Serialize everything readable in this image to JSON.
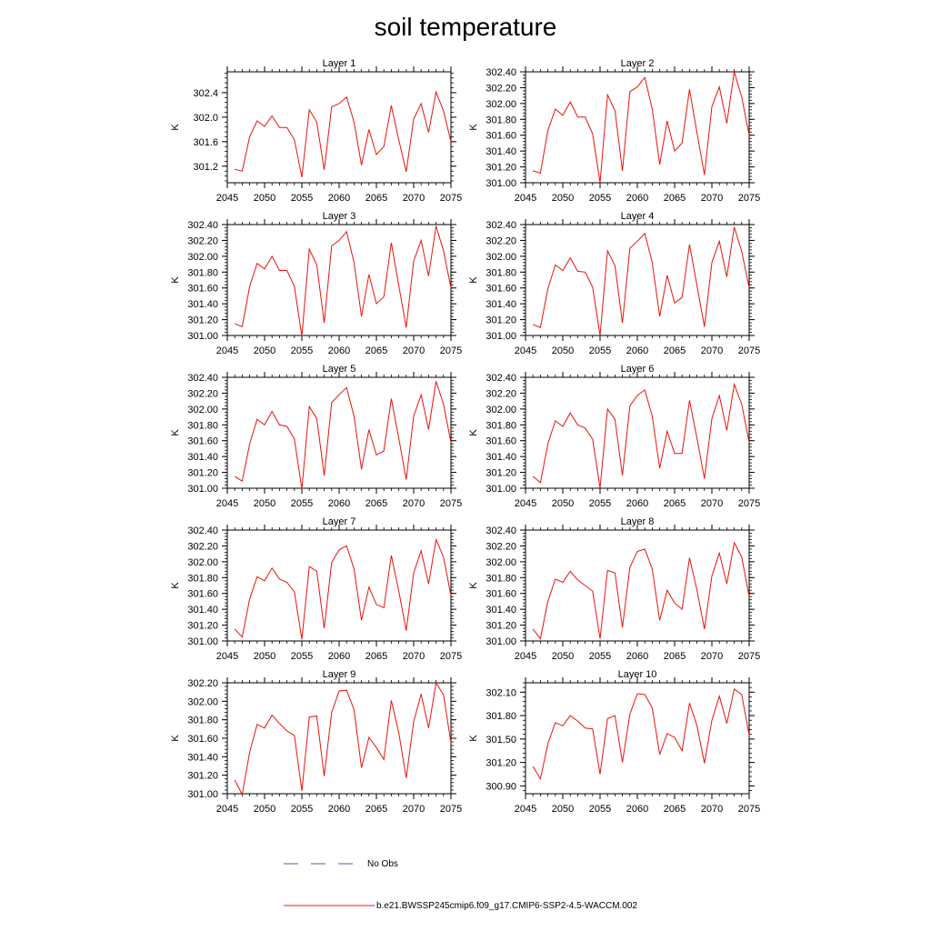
{
  "title": "soil temperature",
  "legend": [
    {
      "label": "No Obs",
      "color": "#5a5aa0",
      "style": "dashed"
    },
    {
      "label": "b.e21.BWSSP245cmip6.f09_g17.CMIP6-SSP2-4.5-WACCM.002",
      "color": "#e8140c",
      "style": "solid"
    }
  ],
  "line_color": "#e8140c",
  "chart_data": [
    {
      "type": "line",
      "title": "Layer 1",
      "ylabel": "K",
      "x": [
        2046,
        2047,
        2048,
        2049,
        2050,
        2051,
        2052,
        2053,
        2054,
        2055,
        2056,
        2057,
        2058,
        2059,
        2060,
        2061,
        2062,
        2063,
        2064,
        2065,
        2066,
        2067,
        2068,
        2069,
        2070,
        2071,
        2072,
        2073,
        2074,
        2075
      ],
      "y": [
        301.15,
        301.12,
        301.68,
        301.94,
        301.85,
        302.02,
        301.83,
        301.83,
        301.63,
        301.02,
        302.12,
        301.92,
        301.14,
        302.17,
        302.22,
        302.33,
        301.92,
        301.22,
        301.8,
        301.39,
        301.52,
        302.19,
        301.63,
        301.11,
        301.97,
        302.22,
        301.75,
        302.41,
        302.1,
        301.6
      ],
      "xlim": [
        2045,
        2075
      ],
      "ylim": [
        300.93,
        302.74
      ],
      "xticks": [
        "2045",
        "2050",
        "2055",
        "2060",
        "2065",
        "2070",
        "2075"
      ],
      "yticks": [
        "301.2",
        "301.6",
        "302.0",
        "302.4"
      ]
    },
    {
      "type": "line",
      "title": "Layer 2",
      "ylabel": "K",
      "x": [
        2046,
        2047,
        2048,
        2049,
        2050,
        2051,
        2052,
        2053,
        2054,
        2055,
        2056,
        2057,
        2058,
        2059,
        2060,
        2061,
        2062,
        2063,
        2064,
        2065,
        2066,
        2067,
        2068,
        2069,
        2070,
        2071,
        2072,
        2073,
        2074,
        2075
      ],
      "y": [
        301.15,
        301.12,
        301.66,
        301.93,
        301.85,
        302.02,
        301.83,
        301.83,
        301.62,
        301.0,
        302.11,
        301.91,
        301.15,
        302.15,
        302.21,
        302.33,
        301.93,
        301.23,
        301.78,
        301.4,
        301.5,
        302.18,
        301.63,
        301.1,
        301.96,
        302.21,
        301.75,
        302.4,
        302.08,
        301.6
      ],
      "xlim": [
        2045,
        2075
      ],
      "ylim": [
        301.0,
        302.4
      ],
      "xticks": [
        "2045",
        "2050",
        "2055",
        "2060",
        "2065",
        "2070",
        "2075"
      ],
      "yticks": [
        "301.00",
        "301.20",
        "301.40",
        "301.60",
        "301.80",
        "302.00",
        "302.20",
        "302.40"
      ]
    },
    {
      "type": "line",
      "title": "Layer 3",
      "ylabel": "K",
      "x": [
        2046,
        2047,
        2048,
        2049,
        2050,
        2051,
        2052,
        2053,
        2054,
        2055,
        2056,
        2057,
        2058,
        2059,
        2060,
        2061,
        2062,
        2063,
        2064,
        2065,
        2066,
        2067,
        2068,
        2069,
        2070,
        2071,
        2072,
        2073,
        2074,
        2075
      ],
      "y": [
        301.15,
        301.11,
        301.62,
        301.91,
        301.84,
        302.0,
        301.82,
        301.82,
        301.62,
        300.99,
        302.09,
        301.89,
        301.16,
        302.13,
        302.2,
        302.31,
        301.92,
        301.24,
        301.77,
        301.4,
        301.49,
        302.17,
        301.63,
        301.1,
        301.94,
        302.2,
        301.75,
        302.38,
        302.07,
        301.6
      ],
      "xlim": [
        2045,
        2075
      ],
      "ylim": [
        301.0,
        302.4
      ],
      "xticks": [
        "2045",
        "2050",
        "2055",
        "2060",
        "2065",
        "2070",
        "2075"
      ],
      "yticks": [
        "301.00",
        "301.20",
        "301.40",
        "301.60",
        "301.80",
        "302.00",
        "302.20",
        "302.40"
      ]
    },
    {
      "type": "line",
      "title": "Layer 4",
      "ylabel": "K",
      "x": [
        2046,
        2047,
        2048,
        2049,
        2050,
        2051,
        2052,
        2053,
        2054,
        2055,
        2056,
        2057,
        2058,
        2059,
        2060,
        2061,
        2062,
        2063,
        2064,
        2065,
        2066,
        2067,
        2068,
        2069,
        2070,
        2071,
        2072,
        2073,
        2074,
        2075
      ],
      "y": [
        301.14,
        301.1,
        301.59,
        301.89,
        301.82,
        301.98,
        301.81,
        301.8,
        301.61,
        301.0,
        302.07,
        301.88,
        301.16,
        302.1,
        302.19,
        302.29,
        301.92,
        301.24,
        301.76,
        301.41,
        301.48,
        302.15,
        301.63,
        301.11,
        301.92,
        302.19,
        301.74,
        302.37,
        302.06,
        301.6
      ],
      "xlim": [
        2045,
        2075
      ],
      "ylim": [
        301.0,
        302.4
      ],
      "xticks": [
        "2045",
        "2050",
        "2055",
        "2060",
        "2065",
        "2070",
        "2075"
      ],
      "yticks": [
        "301.00",
        "301.20",
        "301.40",
        "301.60",
        "301.80",
        "302.00",
        "302.20",
        "302.40"
      ]
    },
    {
      "type": "line",
      "title": "Layer 5",
      "ylabel": "K",
      "x": [
        2046,
        2047,
        2048,
        2049,
        2050,
        2051,
        2052,
        2053,
        2054,
        2055,
        2056,
        2057,
        2058,
        2059,
        2060,
        2061,
        2062,
        2063,
        2064,
        2065,
        2066,
        2067,
        2068,
        2069,
        2070,
        2071,
        2072,
        2073,
        2074,
        2075
      ],
      "y": [
        301.15,
        301.09,
        301.56,
        301.87,
        301.8,
        301.97,
        301.8,
        301.78,
        301.62,
        300.99,
        302.03,
        301.88,
        301.16,
        302.08,
        302.18,
        302.27,
        301.91,
        301.24,
        301.74,
        301.42,
        301.47,
        302.13,
        301.63,
        301.11,
        301.91,
        302.18,
        301.74,
        302.35,
        302.06,
        301.58
      ],
      "xlim": [
        2045,
        2075
      ],
      "ylim": [
        301.0,
        302.4
      ],
      "xticks": [
        "2045",
        "2050",
        "2055",
        "2060",
        "2065",
        "2070",
        "2075"
      ],
      "yticks": [
        "301.00",
        "301.20",
        "301.40",
        "301.60",
        "301.80",
        "302.00",
        "302.20",
        "302.40"
      ]
    },
    {
      "type": "line",
      "title": "Layer 6",
      "ylabel": "K",
      "x": [
        2046,
        2047,
        2048,
        2049,
        2050,
        2051,
        2052,
        2053,
        2054,
        2055,
        2056,
        2057,
        2058,
        2059,
        2060,
        2061,
        2062,
        2063,
        2064,
        2065,
        2066,
        2067,
        2068,
        2069,
        2070,
        2071,
        2072,
        2073,
        2074,
        2075
      ],
      "y": [
        301.15,
        301.07,
        301.56,
        301.85,
        301.78,
        301.95,
        301.8,
        301.76,
        301.62,
        301.0,
        302.0,
        301.87,
        301.16,
        302.04,
        302.17,
        302.24,
        301.91,
        301.25,
        301.72,
        301.44,
        301.44,
        302.11,
        301.63,
        301.12,
        301.88,
        302.17,
        301.73,
        302.31,
        302.06,
        301.58
      ],
      "xlim": [
        2045,
        2075
      ],
      "ylim": [
        301.0,
        302.4
      ],
      "xticks": [
        "2045",
        "2050",
        "2055",
        "2060",
        "2065",
        "2070",
        "2075"
      ],
      "yticks": [
        "301.00",
        "301.20",
        "301.40",
        "301.60",
        "301.80",
        "302.00",
        "302.20",
        "302.40"
      ]
    },
    {
      "type": "line",
      "title": "Layer 7",
      "ylabel": "K",
      "x": [
        2046,
        2047,
        2048,
        2049,
        2050,
        2051,
        2052,
        2053,
        2054,
        2055,
        2056,
        2057,
        2058,
        2059,
        2060,
        2061,
        2062,
        2063,
        2064,
        2065,
        2066,
        2067,
        2068,
        2069,
        2070,
        2071,
        2072,
        2073,
        2074,
        2075
      ],
      "y": [
        301.15,
        301.05,
        301.53,
        301.81,
        301.76,
        301.92,
        301.78,
        301.74,
        301.62,
        301.02,
        301.94,
        301.88,
        301.16,
        301.99,
        302.15,
        302.2,
        301.91,
        301.26,
        301.68,
        301.46,
        301.42,
        302.08,
        301.63,
        301.13,
        301.86,
        302.14,
        301.72,
        302.28,
        302.06,
        301.57
      ],
      "xlim": [
        2045,
        2075
      ],
      "ylim": [
        301.0,
        302.4
      ],
      "xticks": [
        "2045",
        "2050",
        "2055",
        "2060",
        "2065",
        "2070",
        "2075"
      ],
      "yticks": [
        "301.00",
        "301.20",
        "301.40",
        "301.60",
        "301.80",
        "302.00",
        "302.20",
        "302.40"
      ]
    },
    {
      "type": "line",
      "title": "Layer 8",
      "ylabel": "K",
      "x": [
        2046,
        2047,
        2048,
        2049,
        2050,
        2051,
        2052,
        2053,
        2054,
        2055,
        2056,
        2057,
        2058,
        2059,
        2060,
        2061,
        2062,
        2063,
        2064,
        2065,
        2066,
        2067,
        2068,
        2069,
        2070,
        2071,
        2072,
        2073,
        2074,
        2075
      ],
      "y": [
        301.15,
        301.03,
        301.5,
        301.78,
        301.74,
        301.88,
        301.77,
        301.7,
        301.63,
        301.03,
        301.89,
        301.86,
        301.17,
        301.93,
        302.13,
        302.16,
        301.91,
        301.26,
        301.64,
        301.48,
        301.4,
        302.05,
        301.64,
        301.15,
        301.82,
        302.11,
        301.72,
        302.24,
        302.06,
        301.56
      ],
      "xlim": [
        2045,
        2075
      ],
      "ylim": [
        301.0,
        302.4
      ],
      "xticks": [
        "2045",
        "2050",
        "2055",
        "2060",
        "2065",
        "2070",
        "2075"
      ],
      "yticks": [
        "301.00",
        "301.20",
        "301.40",
        "301.60",
        "301.80",
        "302.00",
        "302.20",
        "302.40"
      ]
    },
    {
      "type": "line",
      "title": "Layer 9",
      "ylabel": "K",
      "x": [
        2046,
        2047,
        2048,
        2049,
        2050,
        2051,
        2052,
        2053,
        2054,
        2055,
        2056,
        2057,
        2058,
        2059,
        2060,
        2061,
        2062,
        2063,
        2064,
        2065,
        2066,
        2067,
        2068,
        2069,
        2070,
        2071,
        2072,
        2073,
        2074,
        2075
      ],
      "y": [
        301.15,
        300.99,
        301.45,
        301.75,
        301.71,
        301.85,
        301.76,
        301.68,
        301.63,
        301.03,
        301.83,
        301.84,
        301.19,
        301.88,
        302.11,
        302.12,
        301.91,
        301.28,
        301.61,
        301.5,
        301.37,
        302.01,
        301.66,
        301.17,
        301.78,
        302.08,
        301.71,
        302.2,
        302.07,
        301.55
      ],
      "xlim": [
        2045,
        2075
      ],
      "ylim": [
        301.0,
        302.2
      ],
      "xticks": [
        "2045",
        "2050",
        "2055",
        "2060",
        "2065",
        "2070",
        "2075"
      ],
      "yticks": [
        "301.00",
        "301.20",
        "301.40",
        "301.60",
        "301.80",
        "302.00",
        "302.20"
      ]
    },
    {
      "type": "line",
      "title": "Layer 10",
      "ylabel": "K",
      "x": [
        2046,
        2047,
        2048,
        2049,
        2050,
        2051,
        2052,
        2053,
        2054,
        2055,
        2056,
        2057,
        2058,
        2059,
        2060,
        2061,
        2062,
        2063,
        2064,
        2065,
        2066,
        2067,
        2068,
        2069,
        2070,
        2071,
        2072,
        2073,
        2074,
        2075
      ],
      "y": [
        301.15,
        300.99,
        301.44,
        301.71,
        301.67,
        301.8,
        301.73,
        301.64,
        301.63,
        301.05,
        301.76,
        301.8,
        301.2,
        301.82,
        302.08,
        302.07,
        301.9,
        301.3,
        301.57,
        301.52,
        301.35,
        301.96,
        301.67,
        301.19,
        301.74,
        302.05,
        301.7,
        302.14,
        302.07,
        301.55
      ],
      "xlim": [
        2045,
        2075
      ],
      "ylim": [
        300.8,
        302.22
      ],
      "xticks": [
        "2045",
        "2050",
        "2055",
        "2060",
        "2065",
        "2070",
        "2075"
      ],
      "yticks": [
        "300.90",
        "301.20",
        "301.50",
        "301.80",
        "302.10"
      ]
    }
  ]
}
